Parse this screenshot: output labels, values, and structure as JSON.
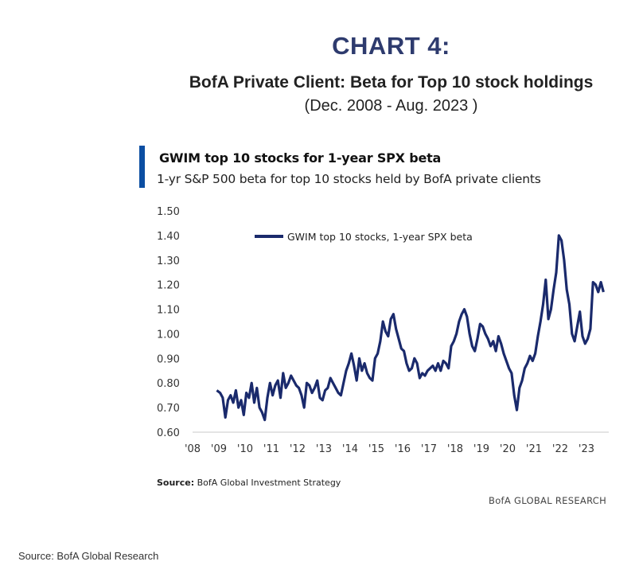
{
  "heading": "CHART 4:",
  "title": "BofA Private Client: Beta for Top 10 stock holdings",
  "date_range": "(Dec. 2008 - Aug. 2023 )",
  "panel": {
    "title": "GWIM top 10 stocks for 1-year SPX beta",
    "subtitle": "1-yr S&P 500 beta for top 10 stocks held by BofA private clients"
  },
  "source_inner": {
    "label": "Source:",
    "text": "BofA Global Investment Strategy"
  },
  "research_tag": "BofA GLOBAL RESEARCH",
  "source_outer": "Source: BofA Global Research",
  "colors": {
    "heading": "#2e3b6e",
    "accent_bar": "#0b4ea2",
    "series_line": "#1a2a6c"
  },
  "chart_data": {
    "type": "line",
    "title": "GWIM top 10 stocks for 1-year SPX beta",
    "subtitle": "1-yr S&P 500 beta for top 10 stocks held by BofA private clients",
    "x_tick_labels": [
      "'08",
      "'09",
      "'10",
      "'11",
      "'12",
      "'13",
      "'14",
      "'15",
      "'16",
      "'17",
      "'18",
      "'19",
      "'20",
      "'21",
      "'22",
      "'23"
    ],
    "x_tick_years": [
      2008,
      2009,
      2010,
      2011,
      2012,
      2013,
      2014,
      2015,
      2016,
      2017,
      2018,
      2019,
      2020,
      2021,
      2022,
      2023
    ],
    "xlim": [
      2008,
      2023.85
    ],
    "y_tick_labels": [
      "0.60",
      "0.70",
      "0.80",
      "0.90",
      "1.00",
      "1.10",
      "1.20",
      "1.30",
      "1.40",
      "1.50"
    ],
    "ylim": [
      0.6,
      1.5
    ],
    "grid": false,
    "legend_position": "top-left",
    "series": [
      {
        "name": "GWIM top 10 stocks, 1-year SPX beta",
        "x": [
          2008.92,
          2009.05,
          2009.15,
          2009.25,
          2009.35,
          2009.45,
          2009.55,
          2009.65,
          2009.75,
          2009.85,
          2009.95,
          2010.05,
          2010.15,
          2010.25,
          2010.35,
          2010.45,
          2010.55,
          2010.65,
          2010.75,
          2010.85,
          2010.95,
          2011.05,
          2011.15,
          2011.25,
          2011.35,
          2011.45,
          2011.55,
          2011.65,
          2011.75,
          2011.85,
          2011.95,
          2012.05,
          2012.15,
          2012.25,
          2012.35,
          2012.45,
          2012.55,
          2012.65,
          2012.75,
          2012.85,
          2012.95,
          2013.05,
          2013.15,
          2013.25,
          2013.35,
          2013.45,
          2013.55,
          2013.65,
          2013.75,
          2013.85,
          2013.95,
          2014.05,
          2014.15,
          2014.25,
          2014.35,
          2014.45,
          2014.55,
          2014.65,
          2014.75,
          2014.85,
          2014.95,
          2015.05,
          2015.15,
          2015.25,
          2015.35,
          2015.45,
          2015.55,
          2015.65,
          2015.75,
          2015.85,
          2015.95,
          2016.05,
          2016.15,
          2016.25,
          2016.35,
          2016.45,
          2016.55,
          2016.65,
          2016.75,
          2016.85,
          2016.95,
          2017.05,
          2017.15,
          2017.25,
          2017.35,
          2017.45,
          2017.55,
          2017.65,
          2017.75,
          2017.85,
          2017.95,
          2018.05,
          2018.15,
          2018.25,
          2018.35,
          2018.45,
          2018.55,
          2018.65,
          2018.75,
          2018.85,
          2018.95,
          2019.05,
          2019.15,
          2019.25,
          2019.35,
          2019.45,
          2019.55,
          2019.65,
          2019.75,
          2019.85,
          2019.95,
          2020.05,
          2020.15,
          2020.25,
          2020.35,
          2020.45,
          2020.55,
          2020.65,
          2020.75,
          2020.85,
          2020.95,
          2021.05,
          2021.15,
          2021.25,
          2021.35,
          2021.45,
          2021.55,
          2021.65,
          2021.75,
          2021.85,
          2021.95,
          2022.05,
          2022.15,
          2022.25,
          2022.35,
          2022.45,
          2022.55,
          2022.65,
          2022.75,
          2022.85,
          2022.95,
          2023.05,
          2023.15,
          2023.25,
          2023.35,
          2023.45,
          2023.55,
          2023.65
        ],
        "values": [
          0.77,
          0.76,
          0.74,
          0.66,
          0.73,
          0.75,
          0.72,
          0.77,
          0.7,
          0.73,
          0.67,
          0.76,
          0.74,
          0.8,
          0.72,
          0.78,
          0.7,
          0.68,
          0.65,
          0.74,
          0.8,
          0.75,
          0.79,
          0.81,
          0.74,
          0.84,
          0.78,
          0.8,
          0.83,
          0.81,
          0.79,
          0.78,
          0.75,
          0.7,
          0.8,
          0.79,
          0.76,
          0.78,
          0.81,
          0.74,
          0.73,
          0.77,
          0.78,
          0.82,
          0.8,
          0.78,
          0.76,
          0.75,
          0.8,
          0.85,
          0.88,
          0.92,
          0.87,
          0.81,
          0.9,
          0.85,
          0.88,
          0.84,
          0.82,
          0.81,
          0.9,
          0.92,
          0.97,
          1.05,
          1.01,
          0.99,
          1.06,
          1.08,
          1.02,
          0.98,
          0.94,
          0.93,
          0.88,
          0.85,
          0.86,
          0.9,
          0.88,
          0.82,
          0.84,
          0.83,
          0.85,
          0.86,
          0.87,
          0.85,
          0.88,
          0.85,
          0.89,
          0.88,
          0.86,
          0.95,
          0.97,
          1.0,
          1.05,
          1.08,
          1.1,
          1.07,
          1.0,
          0.95,
          0.93,
          0.98,
          1.04,
          1.03,
          1.0,
          0.98,
          0.95,
          0.97,
          0.93,
          0.99,
          0.96,
          0.92,
          0.89,
          0.86,
          0.84,
          0.75,
          0.69,
          0.78,
          0.81,
          0.86,
          0.88,
          0.91,
          0.89,
          0.92,
          0.99,
          1.05,
          1.12,
          1.22,
          1.06,
          1.1,
          1.18,
          1.25,
          1.4,
          1.38,
          1.3,
          1.18,
          1.12,
          1.0,
          0.97,
          1.03,
          1.09,
          0.99,
          0.96,
          0.98,
          1.02,
          1.21,
          1.2,
          1.17,
          1.21,
          1.17
        ]
      }
    ]
  }
}
